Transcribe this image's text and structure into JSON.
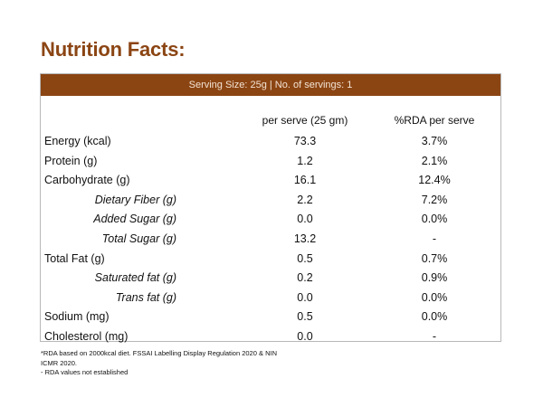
{
  "title": "Nutrition Facts:",
  "serving_bar": "Serving Size: 25g | No. of servings: 1",
  "columns": {
    "per_serve": "per serve (25 gm)",
    "rda": "%RDA per serve"
  },
  "rows": [
    {
      "name": "Energy (kcal)",
      "per_serve": "73.3",
      "rda": "3.7%",
      "sub": false
    },
    {
      "name": "Protein (g)",
      "per_serve": "1.2",
      "rda": "2.1%",
      "sub": false
    },
    {
      "name": "Carbohydrate (g)",
      "per_serve": "16.1",
      "rda": "12.4%",
      "sub": false
    },
    {
      "name": "Dietary Fiber (g)",
      "per_serve": "2.2",
      "rda": "7.2%",
      "sub": true
    },
    {
      "name": "Added Sugar (g)",
      "per_serve": "0.0",
      "rda": "0.0%",
      "sub": true
    },
    {
      "name": "Total Sugar (g)",
      "per_serve": "13.2",
      "rda": "-",
      "sub": true
    },
    {
      "name": "Total Fat (g)",
      "per_serve": "0.5",
      "rda": "0.7%",
      "sub": false
    },
    {
      "name": "Saturated fat (g)",
      "per_serve": "0.2",
      "rda": "0.9%",
      "sub": true
    },
    {
      "name": "Trans fat (g)",
      "per_serve": "0.0",
      "rda": "0.0%",
      "sub": true
    },
    {
      "name": "Sodium (mg)",
      "per_serve": "0.5",
      "rda": "0.0%",
      "sub": false
    },
    {
      "name": "Cholesterol (mg)",
      "per_serve": "0.0",
      "rda": "-",
      "sub": false
    }
  ],
  "footnotes": {
    "line1": "*RDA based on 2000kcal diet. FSSAI Labelling Display Regulation 2020 & NIN",
    "line2": "ICMR 2020.",
    "line3": "- RDA values not established"
  },
  "colors": {
    "brand_brown": "#8b4513",
    "serving_text": "#f3e3d3",
    "border": "#b8b8b8"
  }
}
